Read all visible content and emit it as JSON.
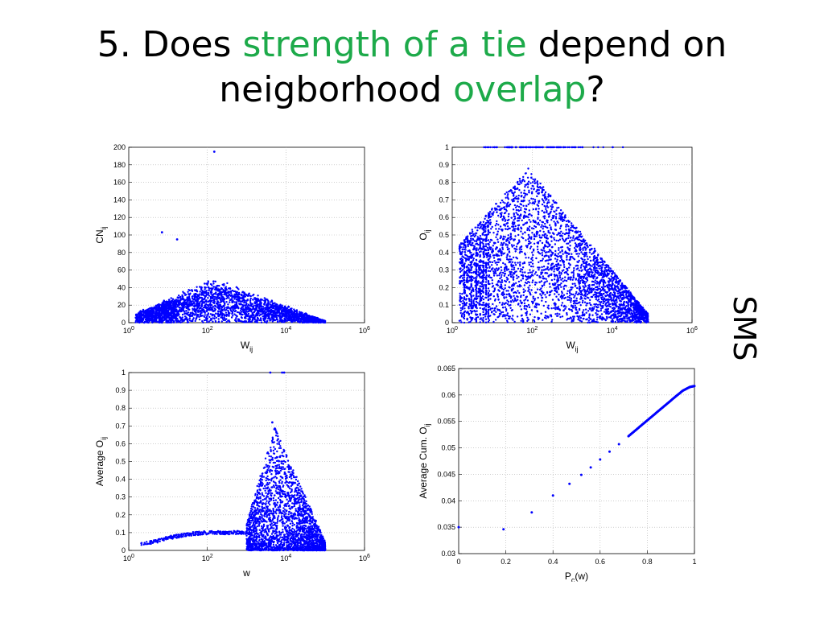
{
  "slide": {
    "title_prefix": "5. Does ",
    "title_hl1": "strength of a tie",
    "title_mid": " depend on",
    "title_line2": "neigborhood ",
    "title_hl2": "overlap",
    "title_end": "?",
    "side_label": "SMS"
  },
  "colors": {
    "accent": "#1daa4a",
    "series": "#0000ff"
  },
  "chart_data": [
    {
      "id": "cn-vs-w",
      "type": "scatter",
      "x_scale": "log",
      "xlim": [
        1,
        1000000
      ],
      "ylim": [
        0,
        200
      ],
      "xticks": [
        "10^0",
        "10^2",
        "10^4",
        "10^6"
      ],
      "yticks": [
        0,
        20,
        40,
        60,
        80,
        100,
        120,
        140,
        160,
        180,
        200
      ],
      "xlabel": "W",
      "xlabel_sub": "ij",
      "ylabel": "CN",
      "ylabel_sub": "ij",
      "grid": true,
      "outliers": [
        [
          150,
          195
        ],
        [
          7,
          103
        ],
        [
          17,
          95
        ]
      ],
      "cloud": {
        "shape": "hump",
        "x_min": 1.5,
        "x_max": 100000,
        "peak_x": 150,
        "peak_y": 45,
        "tail_y": 2
      }
    },
    {
      "id": "o-vs-w",
      "type": "scatter",
      "x_scale": "log",
      "xlim": [
        1,
        1000000
      ],
      "ylim": [
        0,
        1
      ],
      "xticks": [
        "10^0",
        "10^2",
        "10^4",
        "10^6"
      ],
      "yticks": [
        0,
        0.1,
        0.2,
        0.3,
        0.4,
        0.5,
        0.6,
        0.7,
        0.8,
        0.9,
        1
      ],
      "xlabel": "W",
      "xlabel_sub": "ij",
      "ylabel": "O",
      "ylabel_sub": "ij",
      "grid": true,
      "top_line": {
        "y": 1,
        "x_from": 5,
        "x_to": 2000
      },
      "cloud": {
        "shape": "dome",
        "x_min": 1.5,
        "x_max": 80000,
        "peak_x": 80,
        "peak_y": 0.88
      }
    },
    {
      "id": "avg-o-vs-w",
      "type": "scatter",
      "x_scale": "log",
      "xlim": [
        1,
        1000000
      ],
      "ylim": [
        0,
        1
      ],
      "xticks": [
        "10^0",
        "10^2",
        "10^4",
        "10^6"
      ],
      "yticks": [
        0,
        0.1,
        0.2,
        0.3,
        0.4,
        0.5,
        0.6,
        0.7,
        0.8,
        0.9,
        1
      ],
      "xlabel": "w",
      "ylabel": "Average O",
      "ylabel_sub": "ij",
      "grid": true,
      "trend": [
        [
          2,
          0.04
        ],
        [
          5,
          0.05
        ],
        [
          10,
          0.07
        ],
        [
          30,
          0.09
        ],
        [
          100,
          0.1
        ],
        [
          300,
          0.1
        ],
        [
          1000,
          0.1
        ]
      ],
      "outliers": [
        [
          4000,
          1.0
        ],
        [
          8000,
          1.0
        ],
        [
          9000,
          1.0
        ],
        [
          4500,
          0.72
        ]
      ],
      "cloud": {
        "shape": "spread",
        "x_min": 1000,
        "x_max": 100000,
        "peak_x": 5000,
        "peak_y": 0.7
      }
    },
    {
      "id": "avg-cum-o-vs-pc",
      "type": "line",
      "xlim": [
        0,
        1
      ],
      "ylim": [
        0.03,
        0.065
      ],
      "xticks": [
        "0",
        "0.2",
        "0.4",
        "0.6",
        "0.8",
        "1"
      ],
      "yticks": [
        "0.03",
        "0.035",
        "0.04",
        "0.045",
        "0.05",
        "0.055",
        "0.06",
        "0.065"
      ],
      "xlabel": "P",
      "xlabel_sub": "c",
      "xlabel_suffix": "(w)",
      "ylabel": "Average Cum. O",
      "ylabel_sub": "ij",
      "grid": true,
      "points": [
        [
          0.0,
          0.035
        ],
        [
          0.19,
          0.0346
        ],
        [
          0.31,
          0.0378
        ],
        [
          0.4,
          0.041
        ],
        [
          0.47,
          0.0432
        ],
        [
          0.52,
          0.0449
        ],
        [
          0.56,
          0.0463
        ],
        [
          0.6,
          0.0478
        ],
        [
          0.64,
          0.0493
        ],
        [
          0.68,
          0.0507
        ],
        [
          0.72,
          0.0522
        ],
        [
          0.76,
          0.0537
        ],
        [
          0.8,
          0.0552
        ],
        [
          0.84,
          0.0567
        ],
        [
          0.88,
          0.0582
        ],
        [
          0.92,
          0.0597
        ],
        [
          0.95,
          0.0608
        ],
        [
          0.98,
          0.0615
        ],
        [
          1.0,
          0.0617
        ]
      ]
    }
  ]
}
